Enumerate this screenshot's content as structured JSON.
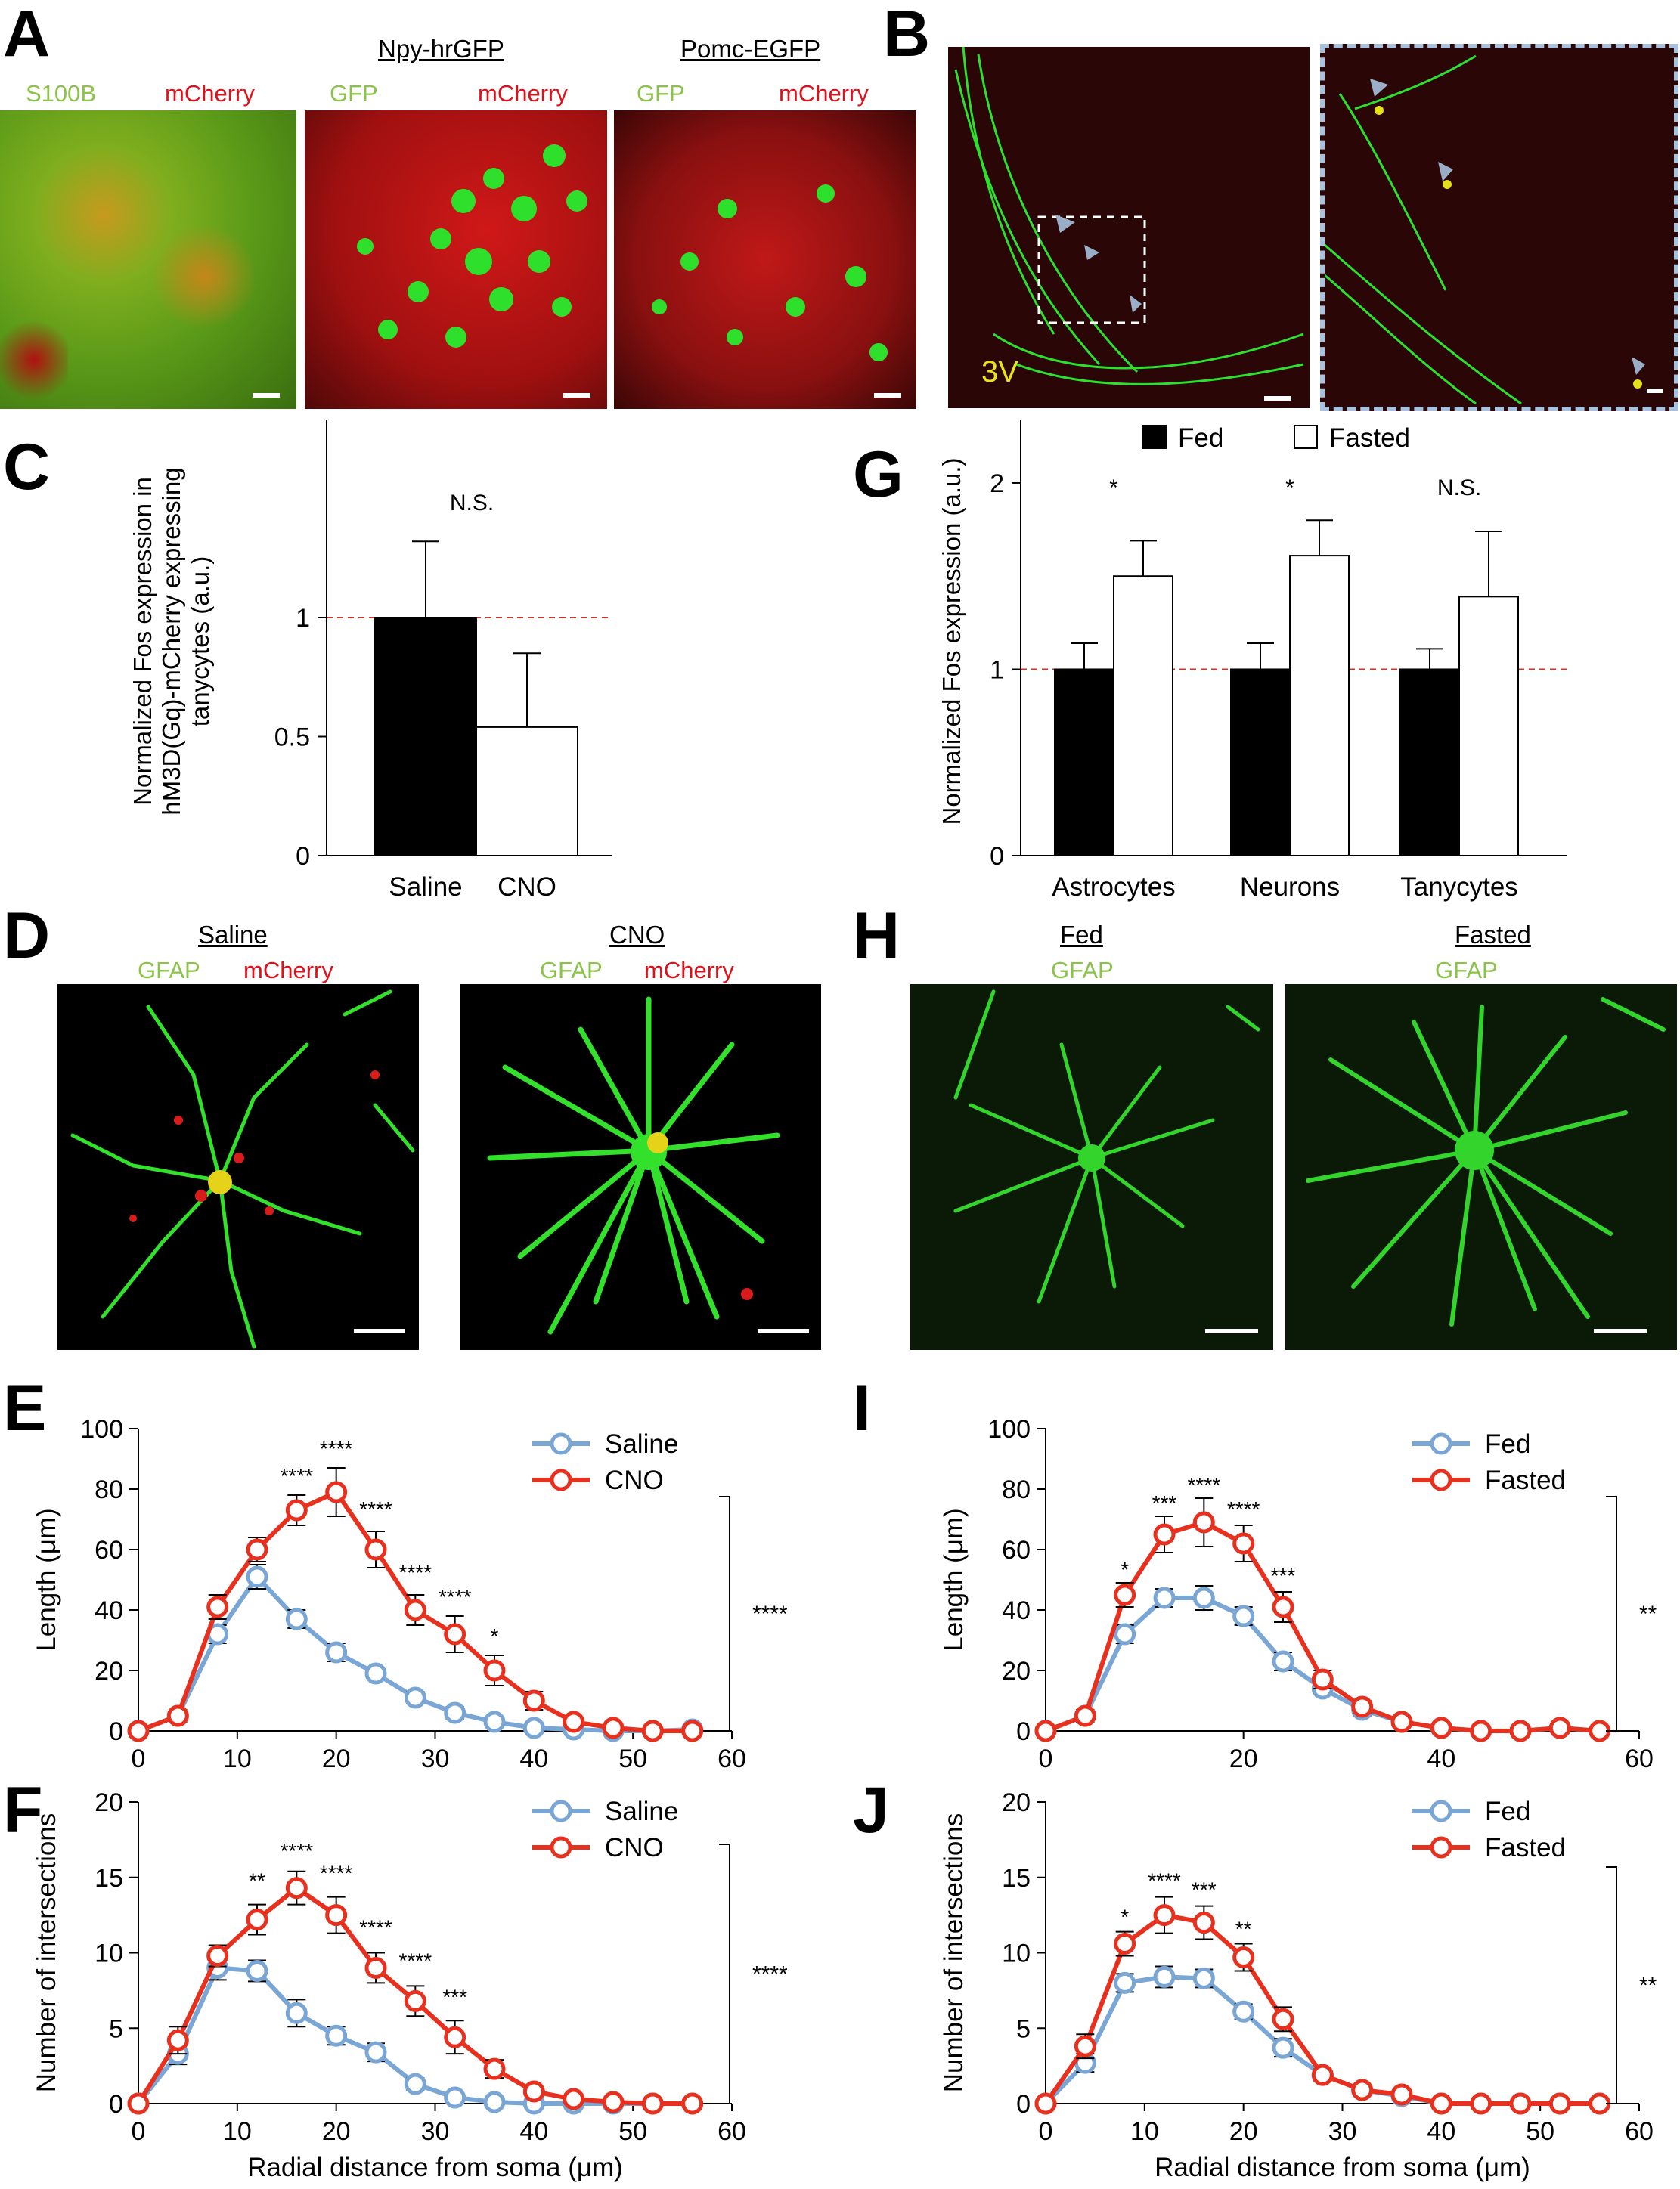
{
  "panel_letters": {
    "A": "A",
    "B": "B",
    "C": "C",
    "D": "D",
    "E": "E",
    "F": "F",
    "G": "G",
    "H": "H",
    "I": "I",
    "J": "J"
  },
  "panelA": {
    "titles": [
      "",
      "Npy-hrGFP",
      "Pomc-EGFP"
    ],
    "channels": [
      {
        "green": "S100B",
        "red": "mCherry"
      },
      {
        "green": "GFP",
        "red": "mCherry"
      },
      {
        "green": "GFP",
        "red": "mCherry"
      }
    ]
  },
  "panelB": {
    "label": "3V"
  },
  "panelD": {
    "titles": [
      "Saline",
      "CNO"
    ],
    "channels": [
      {
        "green": "GFAP",
        "red": "mCherry"
      },
      {
        "green": "GFAP",
        "red": "mCherry"
      }
    ]
  },
  "panelH": {
    "titles": [
      "Fed",
      "Fasted"
    ],
    "channels": [
      {
        "green": "GFAP"
      },
      {
        "green": "GFAP"
      }
    ]
  },
  "colors": {
    "green": "#19d21c",
    "red": "#c8141a",
    "yellow": "#f5e51a",
    "blue_series": "#7aa6d6",
    "red_series": "#e8301e",
    "dash_ref": "#c0392b"
  },
  "chart_data": [
    {
      "id": "C",
      "type": "bar",
      "ylabel": "Normalized Fos expression in hM3D(Gq)-mCherry expressing tanycytes (a.u.)",
      "ylim": [
        0,
        1.8
      ],
      "yticks": [
        0,
        0.5,
        1
      ],
      "ytick_labels": [
        "0",
        "0.5",
        "1"
      ],
      "categories": [
        "Saline",
        "CNO"
      ],
      "values": [
        1.0,
        0.54
      ],
      "errors": [
        0.32,
        0.31
      ],
      "fills": [
        "#000000",
        "#ffffff"
      ],
      "reference_line": 1,
      "annotation": "N.S."
    },
    {
      "id": "G",
      "type": "bar",
      "ylabel": "Normalized Fos expression (a.u.)",
      "ylim": [
        0,
        2.3
      ],
      "yticks": [
        0,
        1,
        2
      ],
      "ytick_labels": [
        "0",
        "1",
        "2"
      ],
      "categories": [
        "Astrocytes",
        "Neurons",
        "Tanycytes"
      ],
      "series": [
        {
          "name": "Fed",
          "values": [
            1.0,
            1.0,
            1.0
          ],
          "errors": [
            0.14,
            0.14,
            0.11
          ],
          "fill": "#000000"
        },
        {
          "name": "Fasted",
          "values": [
            1.5,
            1.61,
            1.39
          ],
          "errors": [
            0.19,
            0.19,
            0.35
          ],
          "fill": "#ffffff"
        }
      ],
      "reference_line": 1,
      "annotations": [
        "*",
        "*",
        "N.S."
      ],
      "legend": "top"
    },
    {
      "id": "E",
      "type": "line",
      "xlabel": "Radial distance from soma (μm)",
      "ylabel": "Length (μm)",
      "xlim": [
        0,
        60
      ],
      "ylim": [
        0,
        100
      ],
      "xticks": [
        0,
        10,
        20,
        30,
        40,
        50,
        60
      ],
      "yticks": [
        0,
        20,
        40,
        60,
        80,
        100
      ],
      "x": [
        0,
        4,
        8,
        12,
        16,
        20,
        24,
        28,
        32,
        36,
        40,
        44,
        48,
        52,
        56
      ],
      "series": [
        {
          "name": "Saline",
          "values": [
            0,
            5,
            32,
            51,
            37,
            26,
            19,
            11,
            6,
            3,
            1,
            0.5,
            0,
            0,
            0.5
          ],
          "errors": [
            0,
            2,
            3,
            4,
            3,
            3,
            2,
            2,
            2,
            1,
            1,
            0.5,
            0,
            0,
            0.5
          ],
          "color": "#7aa6d6"
        },
        {
          "name": "CNO",
          "values": [
            0,
            5,
            41,
            60,
            73,
            79,
            60,
            40,
            32,
            20,
            10,
            3,
            1,
            0,
            0
          ],
          "errors": [
            0,
            2,
            4,
            4,
            5,
            8,
            6,
            5,
            6,
            5,
            3,
            1,
            1,
            0,
            0
          ],
          "color": "#e8301e"
        }
      ],
      "point_annotations": [
        {
          "x": 16,
          "y": 82,
          "text": "****"
        },
        {
          "x": 20,
          "y": 91,
          "text": "****"
        },
        {
          "x": 24,
          "y": 71,
          "text": "****"
        },
        {
          "x": 28,
          "y": 50,
          "text": "****"
        },
        {
          "x": 32,
          "y": 42,
          "text": "****"
        },
        {
          "x": 36,
          "y": 29,
          "text": "*"
        }
      ],
      "bracket_label": "****",
      "legend": "top-right"
    },
    {
      "id": "F",
      "type": "line",
      "xlabel": "Radial distance from soma (μm)",
      "ylabel": "Number of intersections",
      "xlim": [
        0,
        60
      ],
      "ylim": [
        0,
        20
      ],
      "xticks": [
        0,
        10,
        20,
        30,
        40,
        50,
        60
      ],
      "yticks": [
        0,
        5,
        10,
        15,
        20
      ],
      "x": [
        0,
        4,
        8,
        12,
        16,
        20,
        24,
        28,
        32,
        36,
        40,
        44,
        48,
        52,
        56
      ],
      "series": [
        {
          "name": "Saline",
          "values": [
            0,
            3.3,
            9.0,
            8.8,
            6.0,
            4.5,
            3.4,
            1.3,
            0.4,
            0.1,
            0,
            0,
            0,
            0,
            0
          ],
          "errors": [
            0,
            0.7,
            0.8,
            0.7,
            0.9,
            0.6,
            0.6,
            0.4,
            0.3,
            0.1,
            0,
            0,
            0,
            0,
            0
          ],
          "color": "#7aa6d6"
        },
        {
          "name": "CNO",
          "values": [
            0,
            4.2,
            9.8,
            12.2,
            14.3,
            12.5,
            9.0,
            6.8,
            4.4,
            2.3,
            0.8,
            0.3,
            0.1,
            0,
            0
          ],
          "errors": [
            0,
            0.9,
            0.7,
            1.0,
            1.1,
            1.2,
            1.0,
            1.0,
            1.1,
            0.6,
            0.4,
            0.2,
            0.1,
            0,
            0
          ],
          "color": "#e8301e"
        }
      ],
      "point_annotations": [
        {
          "x": 12,
          "y": 14.3,
          "text": "**"
        },
        {
          "x": 16,
          "y": 16.3,
          "text": "****"
        },
        {
          "x": 20,
          "y": 14.8,
          "text": "****"
        },
        {
          "x": 24,
          "y": 11.2,
          "text": "****"
        },
        {
          "x": 28,
          "y": 9.0,
          "text": "****"
        },
        {
          "x": 32,
          "y": 6.6,
          "text": "***"
        }
      ],
      "bracket_label": "****",
      "legend": "top-right"
    },
    {
      "id": "I",
      "type": "line",
      "xlabel": "Radial distance from soma (μm)",
      "ylabel": "Length (μm)",
      "xlim": [
        0,
        60
      ],
      "ylim": [
        0,
        100
      ],
      "xticks": [
        0,
        20,
        40,
        60
      ],
      "yticks": [
        0,
        20,
        40,
        60,
        80,
        100
      ],
      "x": [
        0,
        4,
        8,
        12,
        16,
        20,
        24,
        28,
        32,
        36,
        40,
        44,
        48,
        52,
        56
      ],
      "series": [
        {
          "name": "Fed",
          "values": [
            0,
            5,
            32,
            44,
            44,
            38,
            23,
            14,
            7,
            3,
            1,
            0,
            0,
            1,
            0
          ],
          "errors": [
            0,
            2,
            3,
            3,
            4,
            3,
            3,
            2,
            2,
            1,
            1,
            0,
            0,
            1,
            0
          ],
          "color": "#7aa6d6"
        },
        {
          "name": "Fasted",
          "values": [
            0,
            5,
            45,
            65,
            69,
            62,
            41,
            17,
            8,
            3,
            1,
            0,
            0,
            1,
            0
          ],
          "errors": [
            0,
            2,
            4,
            6,
            8,
            6,
            5,
            3,
            2,
            1,
            1,
            0,
            0,
            1,
            0
          ],
          "color": "#e8301e"
        }
      ],
      "point_annotations": [
        {
          "x": 8,
          "y": 51,
          "text": "*"
        },
        {
          "x": 12,
          "y": 73,
          "text": "***"
        },
        {
          "x": 16,
          "y": 79,
          "text": "****"
        },
        {
          "x": 20,
          "y": 71,
          "text": "****"
        },
        {
          "x": 24,
          "y": 49,
          "text": "***"
        }
      ],
      "bracket_label": "**",
      "legend": "top-right"
    },
    {
      "id": "J",
      "type": "line",
      "xlabel": "Radial distance from soma (μm)",
      "ylabel": "Number of intersections",
      "xlim": [
        0,
        60
      ],
      "ylim": [
        0,
        20
      ],
      "xticks": [
        0,
        10,
        20,
        30,
        40,
        50,
        60
      ],
      "yticks": [
        0,
        5,
        10,
        15,
        20
      ],
      "x": [
        0,
        4,
        8,
        12,
        16,
        20,
        24,
        28,
        32,
        36,
        40,
        44,
        48,
        52,
        56
      ],
      "series": [
        {
          "name": "Fed",
          "values": [
            0,
            2.7,
            8.0,
            8.4,
            8.3,
            6.1,
            3.7,
            1.9,
            0.9,
            0.5,
            0,
            0,
            0,
            0,
            0
          ],
          "errors": [
            0,
            0.6,
            0.6,
            0.7,
            0.6,
            0.5,
            0.6,
            0.4,
            0.3,
            0.2,
            0,
            0,
            0,
            0,
            0
          ],
          "color": "#7aa6d6"
        },
        {
          "name": "Fasted",
          "values": [
            0,
            3.8,
            10.6,
            12.5,
            12.0,
            9.7,
            5.6,
            1.9,
            0.9,
            0.6,
            0,
            0,
            0,
            0,
            0
          ],
          "errors": [
            0,
            0.8,
            0.8,
            1.2,
            1.1,
            0.9,
            0.8,
            0.3,
            0.3,
            0.2,
            0,
            0,
            0,
            0,
            0
          ],
          "color": "#e8301e"
        }
      ],
      "point_annotations": [
        {
          "x": 8,
          "y": 11.9,
          "text": "*"
        },
        {
          "x": 12,
          "y": 14.3,
          "text": "****"
        },
        {
          "x": 16,
          "y": 13.7,
          "text": "***"
        },
        {
          "x": 20,
          "y": 11.1,
          "text": "**"
        }
      ],
      "bracket_label": "**",
      "legend": "top-right"
    }
  ]
}
